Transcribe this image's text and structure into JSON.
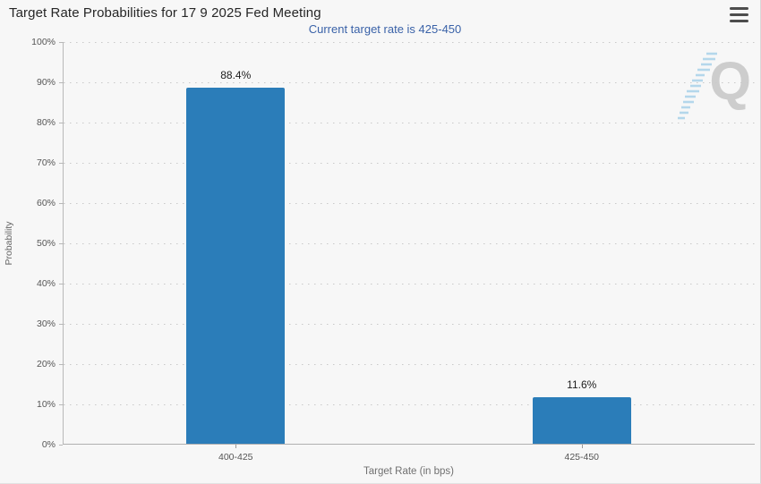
{
  "header": {
    "menu_icon": "hamburger-menu-icon"
  },
  "chart_data": {
    "type": "bar",
    "title": "Target Rate Probabilities for 17 9 2025 Fed Meeting",
    "subtitle": "Current target rate is 425-450",
    "xlabel": "Target Rate (in bps)",
    "ylabel": "Probability",
    "categories": [
      "400-425",
      "425-450"
    ],
    "values": [
      88.4,
      11.6
    ],
    "value_labels": [
      "88.4%",
      "11.6%"
    ],
    "ylim": [
      0,
      100
    ],
    "ytick_labels": [
      "0%",
      "10%",
      "20%",
      "30%",
      "40%",
      "50%",
      "60%",
      "70%",
      "80%",
      "90%",
      "100%"
    ],
    "grid": "dotted-horizontal",
    "legend_position": "none",
    "bar_color": "#2b7db9"
  },
  "watermark": {
    "letter": "Q"
  },
  "colors": {
    "subtitle_blue": "#3a62a8",
    "title_text": "#262626",
    "bar_blue": "#2b7db9",
    "grid_gray": "#c9c9c9",
    "axis_gray": "#b0b0b0",
    "watermark_gray": "#cdcdcd",
    "watermark_blue": "#a9d2ea",
    "background": "#f7f7f7"
  }
}
